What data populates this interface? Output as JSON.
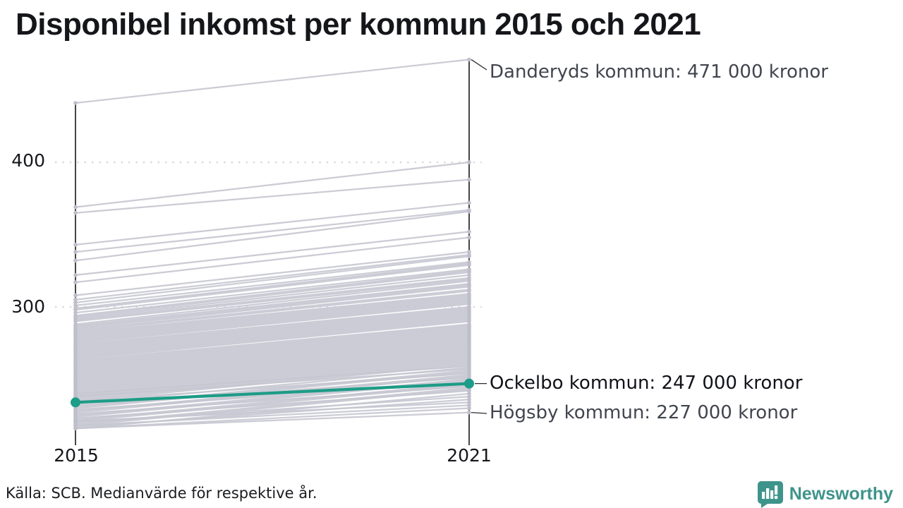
{
  "title": "Disponibel inkomst per kommun 2015 och 2021",
  "axis": {
    "y_ticks": [
      "400",
      "300"
    ],
    "x_ticks": [
      "2015",
      "2021"
    ]
  },
  "annotations": [
    {
      "id": "danderyd",
      "label": "Danderyds kommun: 471 000 kronor"
    },
    {
      "id": "ockelbo",
      "label": "Ockelbo kommun: 247 000 kronor"
    },
    {
      "id": "hogsby",
      "label": "Högsby kommun: 227 000 kronor"
    }
  ],
  "footer": {
    "source": "Källa: SCB. Medianvärde för respektive år."
  },
  "logo": {
    "text": "Newsworthy"
  },
  "colors": {
    "accent_teal": "#1d9c87",
    "logo_teal": "#3e948b",
    "line_gray": "#c7c7d2",
    "dot_gray": "#bfbfcc",
    "axis_black": "#16171c",
    "grid_gray": "#d9d9df",
    "connector_gray": "#2b2b33"
  },
  "chart_data": {
    "type": "line",
    "variant": "slopegraph",
    "title": "Disponibel inkomst per kommun 2015 och 2021",
    "x": [
      "2015",
      "2021"
    ],
    "y_unit": "000 kronor",
    "y_ticks": [
      400,
      300
    ],
    "ylim": [
      210,
      480
    ],
    "grid": "dotted horizontal at y ticks",
    "legend_position": "none (direct labels right of chart)",
    "series": [
      {
        "name": "Danderyds kommun",
        "values": [
          441,
          471
        ],
        "role": "labeled-gray"
      },
      {
        "name": "Ockelbo kommun",
        "values": [
          234,
          247
        ],
        "role": "highlighted-teal"
      },
      {
        "name": "Högsby kommun",
        "values": [
          216,
          227
        ],
        "role": "labeled-gray"
      }
    ],
    "background_lines": [
      [
        369,
        400
      ],
      [
        365,
        388
      ],
      [
        343,
        372
      ],
      [
        338,
        367
      ],
      [
        332,
        366
      ],
      [
        322,
        352
      ],
      [
        317,
        348
      ],
      [
        308,
        338
      ],
      [
        305,
        336
      ],
      [
        303,
        335
      ],
      [
        301,
        331
      ],
      [
        299,
        330
      ],
      [
        298,
        329
      ],
      [
        296,
        326
      ],
      [
        294,
        325
      ],
      [
        293,
        324
      ],
      [
        292,
        322
      ],
      [
        291,
        320
      ],
      [
        290,
        319
      ],
      [
        288,
        318
      ],
      [
        287,
        316
      ],
      [
        286,
        315
      ],
      [
        285,
        314
      ],
      [
        284,
        312
      ],
      [
        283,
        311
      ],
      [
        282,
        309
      ],
      [
        281,
        308
      ],
      [
        280,
        307
      ],
      [
        279,
        306
      ],
      [
        278,
        305
      ],
      [
        277,
        304
      ],
      [
        276,
        303
      ],
      [
        275,
        302
      ],
      [
        274,
        300
      ],
      [
        273,
        299
      ],
      [
        272,
        298
      ],
      [
        271,
        297
      ],
      [
        270,
        296
      ],
      [
        269,
        295
      ],
      [
        268,
        294
      ],
      [
        267,
        293
      ],
      [
        266,
        292
      ],
      [
        265,
        291
      ],
      [
        264,
        290
      ],
      [
        263,
        288
      ],
      [
        262,
        287
      ],
      [
        261,
        286
      ],
      [
        260,
        285
      ],
      [
        259,
        284
      ],
      [
        258,
        283
      ],
      [
        257,
        282
      ],
      [
        256,
        281
      ],
      [
        255,
        280
      ],
      [
        254,
        279
      ],
      [
        253,
        278
      ],
      [
        252,
        277
      ],
      [
        251,
        276
      ],
      [
        250,
        275
      ],
      [
        249,
        274
      ],
      [
        248,
        273
      ],
      [
        247,
        272
      ],
      [
        246,
        271
      ],
      [
        245,
        270
      ],
      [
        244,
        269
      ],
      [
        243,
        268
      ],
      [
        242,
        267
      ],
      [
        241,
        266
      ],
      [
        240,
        265
      ],
      [
        239,
        264
      ],
      [
        238,
        263
      ],
      [
        237,
        262
      ],
      [
        236,
        261
      ],
      [
        235,
        260
      ],
      [
        240,
        259
      ],
      [
        233,
        258
      ],
      [
        238,
        257
      ],
      [
        231,
        256
      ],
      [
        230,
        255
      ],
      [
        235,
        254
      ],
      [
        228,
        253
      ],
      [
        227,
        252
      ],
      [
        232,
        251
      ],
      [
        225,
        250
      ],
      [
        224,
        249
      ],
      [
        229,
        248
      ],
      [
        222,
        247
      ],
      [
        221,
        246
      ],
      [
        226,
        245
      ],
      [
        219,
        244
      ],
      [
        218,
        243
      ],
      [
        223,
        242
      ],
      [
        216,
        240
      ],
      [
        220,
        238
      ],
      [
        217,
        236
      ],
      [
        221,
        234
      ],
      [
        218,
        232
      ],
      [
        216,
        230
      ]
    ]
  }
}
